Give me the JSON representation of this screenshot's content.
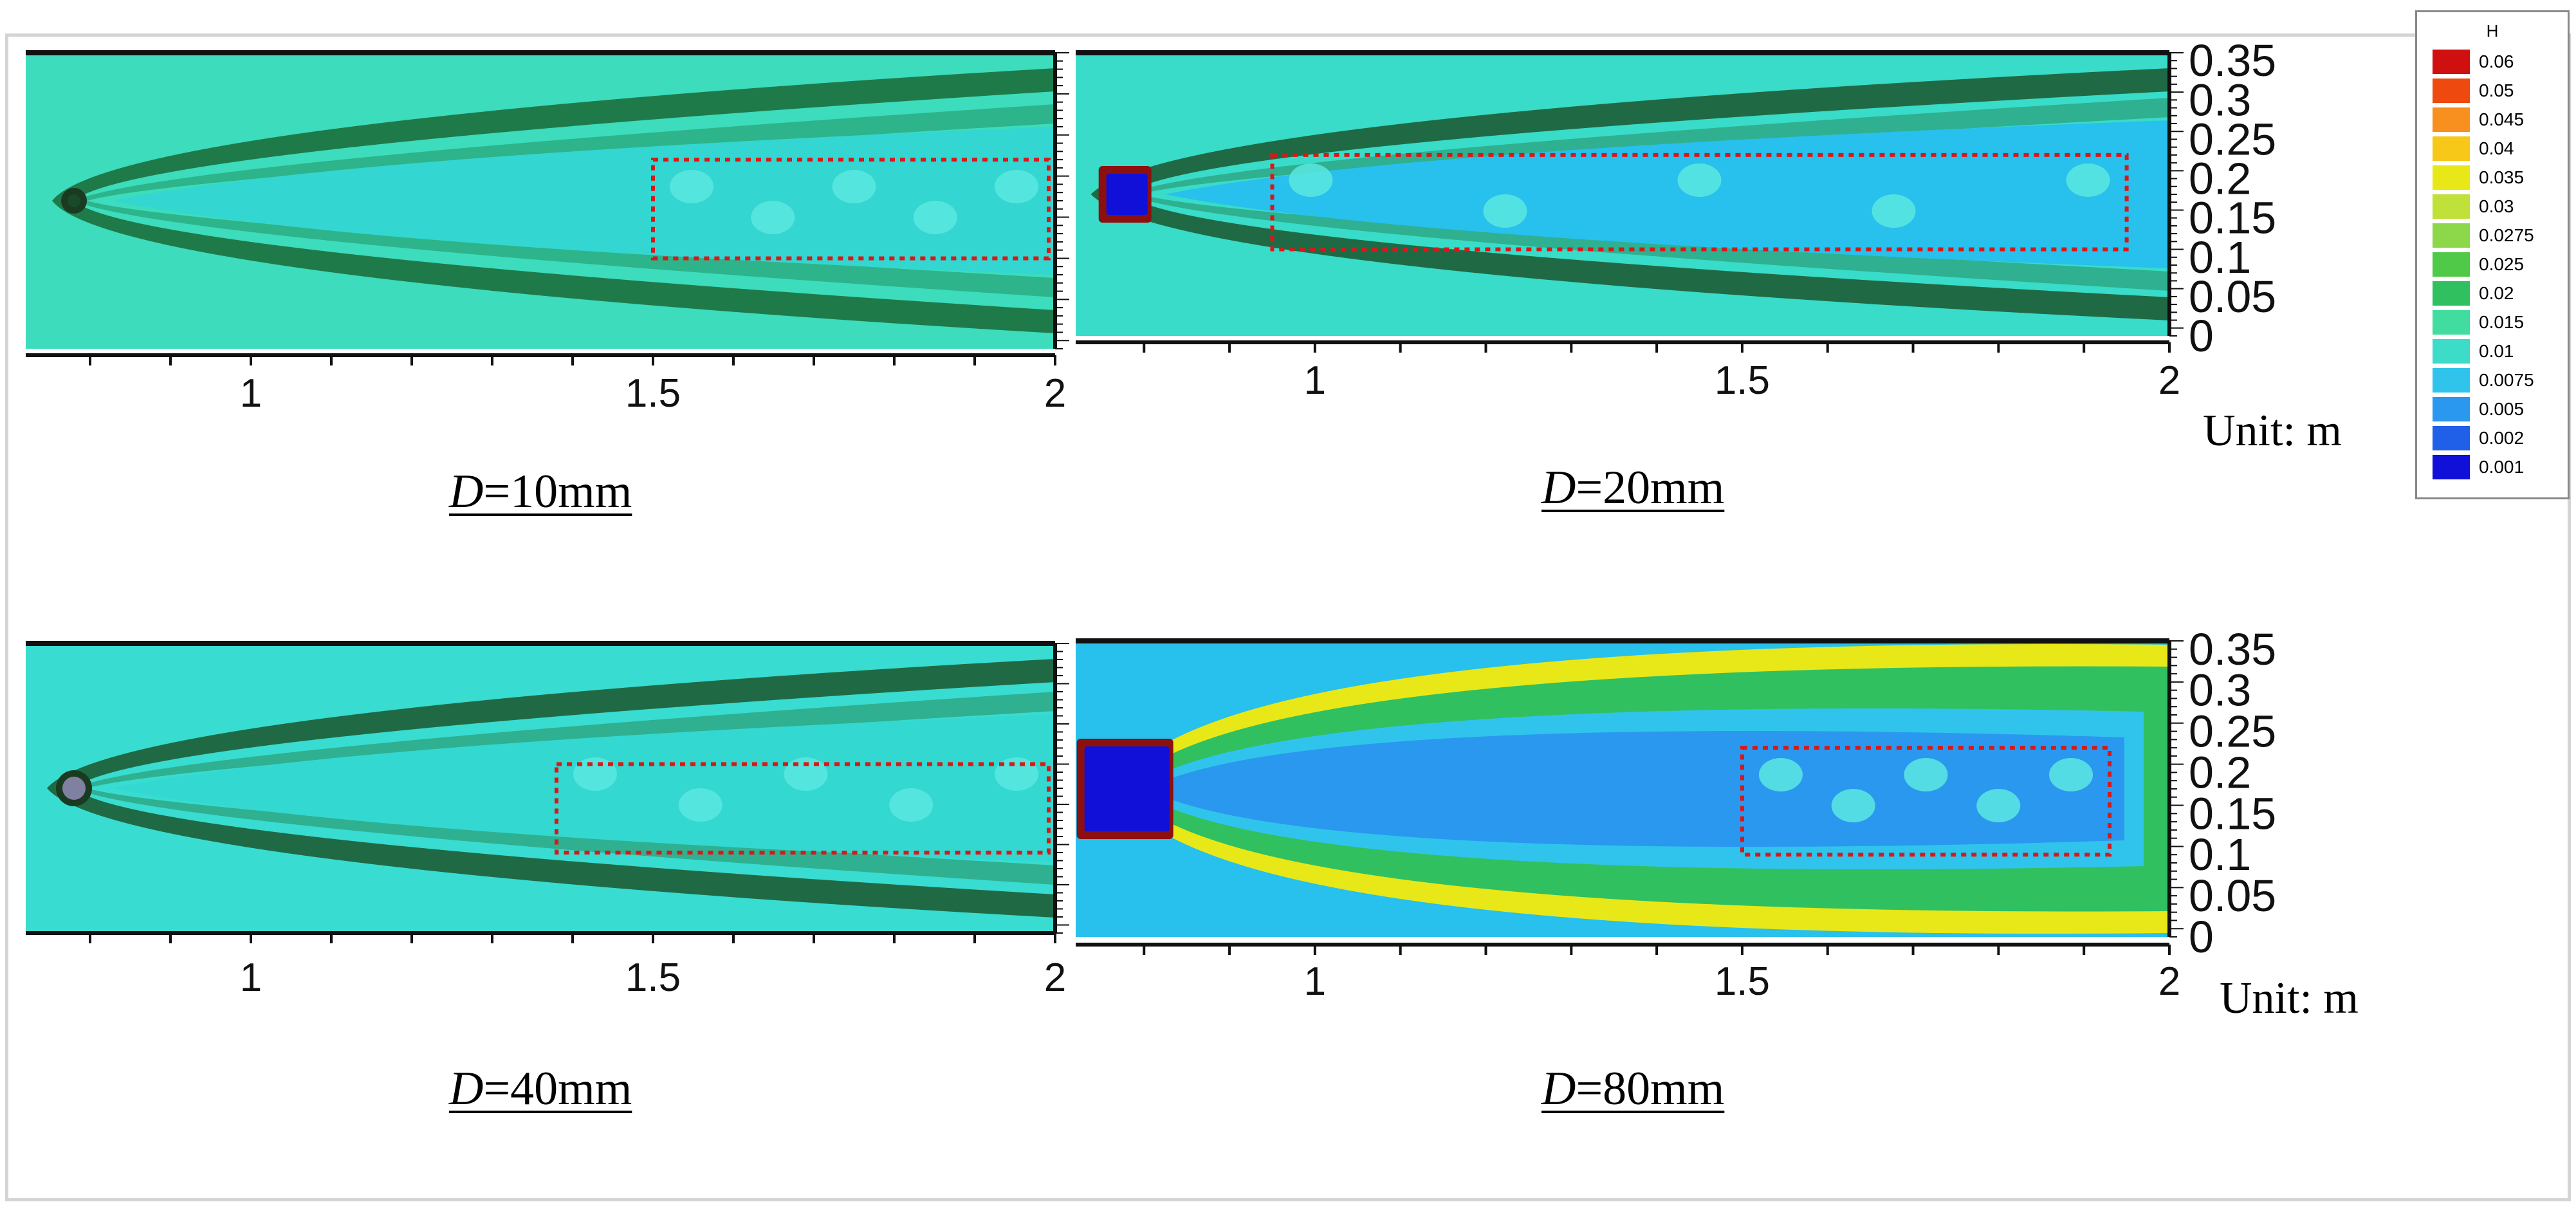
{
  "chart_data": {
    "type": "heatmap",
    "figure": "contour plots of field H around a circular cylinder",
    "colorbar": {
      "title": "H",
      "levels": [
        "0.06",
        "0.05",
        "0.045",
        "0.04",
        "0.035",
        "0.03",
        "0.0275",
        "0.025",
        "0.02",
        "0.015",
        "0.01",
        "0.0075",
        "0.005",
        "0.002",
        "0.001"
      ],
      "colors": [
        "#d01010",
        "#ee4a10",
        "#f89020",
        "#f8c818",
        "#e8e818",
        "#c0e03a",
        "#8cd84a",
        "#50c848",
        "#30c060",
        "#40dca0",
        "#3cdcc8",
        "#30c4ec",
        "#2a98ee",
        "#2060e8",
        "#1010d8"
      ]
    },
    "x_ticks": [
      "1",
      "1.5",
      "2"
    ],
    "y_ticks": [
      "0.35",
      "0.3",
      "0.25",
      "0.2",
      "0.15",
      "0.1",
      "0.05",
      "0"
    ],
    "xlim": [
      0.72,
      2.0
    ],
    "ylim": [
      0,
      0.36
    ],
    "unit_label": "Unit: m",
    "panels": [
      {
        "id": "d10",
        "caption_var": "D",
        "caption_val": "=10mm",
        "cylinder_x": 0.78,
        "box": [
          1.5,
          2.0,
          0.11,
          0.23
        ],
        "show_yaxis": false,
        "show_unit": false,
        "show_legend": false
      },
      {
        "id": "d20",
        "caption_var": "D",
        "caption_val": "=20mm",
        "cylinder_x": 0.78,
        "box": [
          0.95,
          1.95,
          0.11,
          0.23
        ],
        "show_yaxis": true,
        "show_unit": true,
        "show_legend": true
      },
      {
        "id": "d40",
        "caption_var": "D",
        "caption_val": "=40mm",
        "cylinder_x": 0.78,
        "box": [
          1.38,
          2.0,
          0.1,
          0.21
        ],
        "show_yaxis": false,
        "show_unit": false,
        "show_legend": false
      },
      {
        "id": "d80",
        "caption_var": "D",
        "caption_val": "=80mm",
        "cylinder_x": 0.78,
        "box": [
          1.5,
          1.93,
          0.1,
          0.23
        ],
        "show_yaxis": true,
        "show_unit": true,
        "show_legend": false
      }
    ]
  }
}
